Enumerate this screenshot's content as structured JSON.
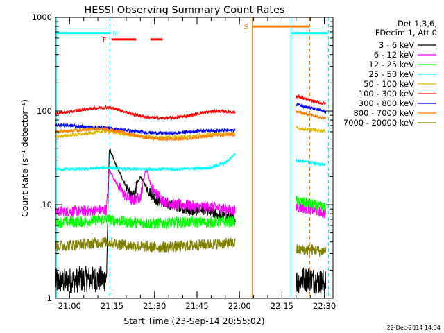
{
  "chart_data": {
    "type": "line",
    "title": "HESSI Observing Summary Count Rates",
    "xlabel": "Start Time (23-Sep-14 20:55:02)",
    "ylabel": "Count Rate (s⁻¹ detector⁻¹)",
    "yscale": "log",
    "ylim": [
      1,
      1000
    ],
    "xlim_minutes_after_start": [
      0,
      98
    ],
    "x_tick_labels": [
      "21:00",
      "21:15",
      "21:30",
      "21:45",
      "22:00",
      "22:15",
      "22:30"
    ],
    "x_tick_minutes": [
      4.97,
      19.97,
      34.97,
      49.97,
      64.97,
      79.97,
      94.97
    ],
    "y_tick_labels": [
      "1",
      "10",
      "100",
      "1000"
    ],
    "y_tick_values": [
      1,
      10,
      100,
      1000
    ],
    "grid": false,
    "legend_header": [
      "Det 1,3,6,",
      "FDecim 1, Att 0"
    ],
    "legend_position": "right",
    "series": [
      {
        "name": "3 - 6 keV",
        "color": "#000000",
        "segments": [
          {
            "x": [
              0,
              10,
              18,
              19,
              21,
              24,
              27,
              30,
              33,
              36,
              40,
              44,
              48,
              52,
              56,
              60,
              63.5
            ],
            "y": [
              1.5,
              1.6,
              1.6,
              40,
              28,
              18,
              12,
              20,
              14,
              11,
              10,
              9.5,
              8.5,
              9,
              8,
              7.5,
              7
            ]
          },
          {
            "x": [
              85,
              87,
              90,
              93,
              95.5
            ],
            "y": [
              1.5,
              1.6,
              1.6,
              1.5,
              1.5
            ]
          }
        ]
      },
      {
        "name": "6 - 12 keV",
        "color": "#ff00ff",
        "segments": [
          {
            "x": [
              0,
              10,
              18,
              19,
              21,
              24,
              27,
              30,
              32,
              34,
              38,
              42,
              46,
              50,
              55,
              60,
              63.5
            ],
            "y": [
              8.5,
              8.5,
              8.8,
              24,
              18,
              13,
              11,
              12,
              25,
              15,
              11,
              10,
              10,
              9.5,
              9.5,
              9,
              8.5
            ]
          },
          {
            "x": [
              85,
              88,
              91,
              93,
              95.5
            ],
            "y": [
              9.5,
              9.2,
              8.8,
              8.5,
              8
            ]
          }
        ]
      },
      {
        "name": "12 - 25 keV",
        "color": "#00ff00",
        "segments": [
          {
            "x": [
              0,
              10,
              18,
              25,
              35,
              45,
              55,
              63.5
            ],
            "y": [
              6.5,
              6.6,
              7,
              6.5,
              6.3,
              6.5,
              6.5,
              6.6
            ]
          },
          {
            "x": [
              85,
              88,
              91,
              93,
              95.5
            ],
            "y": [
              11,
              10.5,
              10,
              9.5,
              9.2
            ]
          }
        ]
      },
      {
        "name": "25 - 50 keV",
        "color": "#00ffff",
        "segments": [
          {
            "x": [
              0,
              10,
              18,
              25,
              35,
              45,
              55,
              60,
              63.5
            ],
            "y": [
              24,
              24,
              25,
              24,
              24,
              24,
              25,
              28,
              35
            ]
          },
          {
            "x": [
              85,
              88,
              91,
              93,
              95.5
            ],
            "y": [
              30,
              29,
              28,
              27,
              27
            ]
          }
        ]
      },
      {
        "name": "50 - 100 keV",
        "color": "#ddbb00",
        "segments": [
          {
            "x": [
              0,
              10,
              18,
              25,
              35,
              45,
              55,
              63.5
            ],
            "y": [
              53,
              57,
              61,
              56,
              52,
              53,
              57,
              58
            ]
          },
          {
            "x": [
              85,
              88,
              91,
              93,
              95.5
            ],
            "y": [
              66,
              64,
              63,
              62,
              61
            ]
          }
        ]
      },
      {
        "name": "100 - 300 keV",
        "color": "#ff0000",
        "segments": [
          {
            "x": [
              0,
              5,
              10,
              15,
              18,
              22,
              27,
              32,
              37,
              42,
              47,
              52,
              57,
              63.5
            ],
            "y": [
              94,
              98,
              104,
              108,
              110,
              104,
              93,
              86,
              84,
              85,
              89,
              96,
              100,
              97
            ]
          },
          {
            "x": [
              85,
              88,
              91,
              93,
              95.5
            ],
            "y": [
              145,
              135,
              128,
              123,
              120
            ]
          }
        ]
      },
      {
        "name": "300 - 800 keV",
        "color": "#0000ff",
        "segments": [
          {
            "x": [
              0,
              5,
              10,
              15,
              18,
              22,
              27,
              32,
              37,
              42,
              47,
              52,
              57,
              63.5
            ],
            "y": [
              71,
              70,
              68,
              67,
              66,
              64,
              61,
              59,
              58,
              58,
              60,
              62,
              62,
              62
            ]
          },
          {
            "x": [
              85,
              88,
              91,
              93,
              95.5
            ],
            "y": [
              118,
              112,
              106,
              102,
              98
            ]
          }
        ]
      },
      {
        "name": "800 - 7000 keV",
        "color": "#ff8000",
        "segments": [
          {
            "x": [
              0,
              5,
              10,
              15,
              18,
              22,
              27,
              32,
              37,
              42,
              47,
              52,
              57,
              63.5
            ],
            "y": [
              60,
              61,
              63,
              65,
              64,
              61,
              56,
              52,
              50,
              50,
              51,
              53,
              55,
              56
            ]
          },
          {
            "x": [
              85,
              88,
              91,
              93,
              95.5
            ],
            "y": [
              98,
              94,
              90,
              87,
              85
            ]
          }
        ]
      },
      {
        "name": "7000 - 20000 keV",
        "color": "#808000",
        "segments": [
          {
            "x": [
              0,
              10,
              18,
              25,
              35,
              45,
              55,
              63.5
            ],
            "y": [
              3.6,
              3.8,
              4.0,
              3.7,
              3.5,
              3.6,
              3.8,
              3.9
            ]
          },
          {
            "x": [
              85,
              88,
              91,
              93,
              95.5
            ],
            "y": [
              3.3,
              3.3,
              3.3,
              3.2,
              3.2
            ]
          }
        ]
      }
    ],
    "flag_bars": [
      {
        "label": "N",
        "color": "#00ffff",
        "y": 680,
        "segments": [
          [
            0,
            19.2
          ],
          [
            83.2,
            96.4
          ]
        ]
      },
      {
        "label": "F",
        "color": "#ff0000",
        "y": 580,
        "segments": [
          [
            19.8,
            28.5
          ],
          [
            33.5,
            37.8
          ]
        ]
      },
      {
        "label": "S",
        "color": "#ff8000",
        "y": 800,
        "segments": [
          [
            69.5,
            89.8
          ]
        ]
      }
    ],
    "vertical_markers": [
      {
        "x": 0.4,
        "color": "#00ffff",
        "style": "solid"
      },
      {
        "x": 19.2,
        "color": "#00ffff",
        "style": "dashed"
      },
      {
        "x": 69.5,
        "color": "#ff8000",
        "style": "solid"
      },
      {
        "x": 83.2,
        "color": "#00ffff",
        "style": "solid"
      },
      {
        "x": 89.8,
        "color": "#ff8000",
        "style": "dashed"
      },
      {
        "x": 96.4,
        "color": "#00ffff",
        "style": "dashed"
      }
    ],
    "footer_timestamp": "22-Dec-2014 14:34"
  }
}
